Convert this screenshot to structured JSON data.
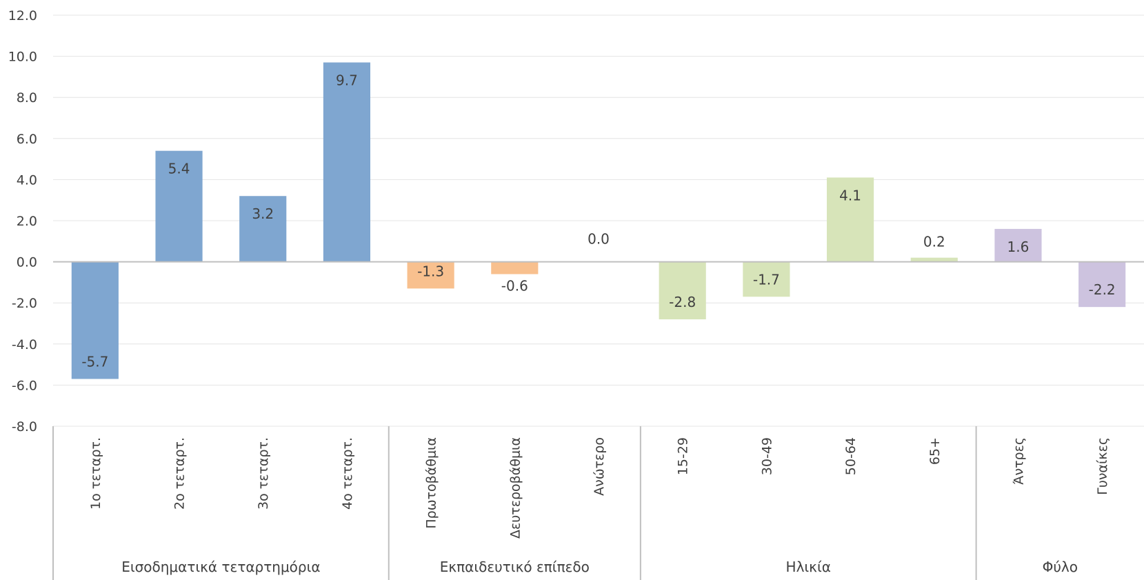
{
  "chart_data": {
    "type": "bar",
    "title": "",
    "xlabel": "",
    "ylabel": "",
    "ylim": [
      -8,
      12
    ],
    "yticks": [
      "12.0",
      "10.0",
      "8.0",
      "6.0",
      "4.0",
      "2.0",
      "0.0",
      "-2.0",
      "-4.0",
      "-6.0",
      "-8.0"
    ],
    "grid": true,
    "legend": "none",
    "groups": [
      {
        "label": "Εισοδηματικά τεταρτημόρια",
        "color": "#7fa6d0",
        "categories": [
          "1ο τεταρτ.",
          "2ο τεταρτ.",
          "3ο τεταρτ.",
          "4ο τεταρτ."
        ],
        "values": [
          -5.7,
          5.4,
          3.2,
          9.7
        ],
        "labels": [
          "-5.7",
          "5.4",
          "3.2",
          "9.7"
        ]
      },
      {
        "label": "Εκπαιδευτικό επίπεδο",
        "color": "#f8c08e",
        "categories": [
          "Πρωτοβάθμια",
          "Δευτεροβάθμια",
          "Ανώτερο"
        ],
        "values": [
          -1.3,
          -0.6,
          0.0
        ],
        "labels": [
          "-1.3",
          "-0.6",
          "0.0"
        ]
      },
      {
        "label": "Ηλικία",
        "color": "#d7e4b9",
        "categories": [
          "15-29",
          "30-49",
          "50-64",
          "65+"
        ],
        "values": [
          -2.8,
          -1.7,
          4.1,
          0.2
        ],
        "labels": [
          "-2.8",
          "-1.7",
          "4.1",
          "0.2"
        ]
      },
      {
        "label": "Φύλο",
        "color": "#cdc3df",
        "categories": [
          "Άντρες",
          "Γυναίκες"
        ],
        "values": [
          1.6,
          -2.2
        ],
        "labels": [
          "1.6",
          "-2.2"
        ]
      }
    ]
  }
}
